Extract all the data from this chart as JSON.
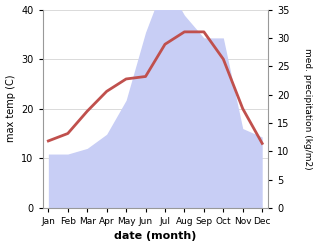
{
  "months": [
    "Jan",
    "Feb",
    "Mar",
    "Apr",
    "May",
    "Jun",
    "Jul",
    "Aug",
    "Sep",
    "Oct",
    "Nov",
    "Dec"
  ],
  "max_temp": [
    13.5,
    15.0,
    19.5,
    23.5,
    26.0,
    26.5,
    33.0,
    35.5,
    35.5,
    30.0,
    20.0,
    13.0
  ],
  "precipitation": [
    9.5,
    9.5,
    10.5,
    13.0,
    19.0,
    31.0,
    40.0,
    34.0,
    30.0,
    30.0,
    14.0,
    12.5
  ],
  "temp_color": "#c0504d",
  "precip_fill_color": "#c8cef5",
  "ylabel_left": "max temp (C)",
  "ylabel_right": "med. precipitation (kg/m2)",
  "xlabel": "date (month)",
  "ylim_left": [
    0,
    40
  ],
  "ylim_right": [
    0,
    35
  ],
  "yticks_left": [
    0,
    10,
    20,
    30,
    40
  ],
  "yticks_right": [
    0,
    5,
    10,
    15,
    20,
    25,
    30,
    35
  ],
  "bg_color": "#ffffff",
  "grid_color": "#cccccc",
  "spine_color": "#999999",
  "precip_scale_factor": 0.875
}
